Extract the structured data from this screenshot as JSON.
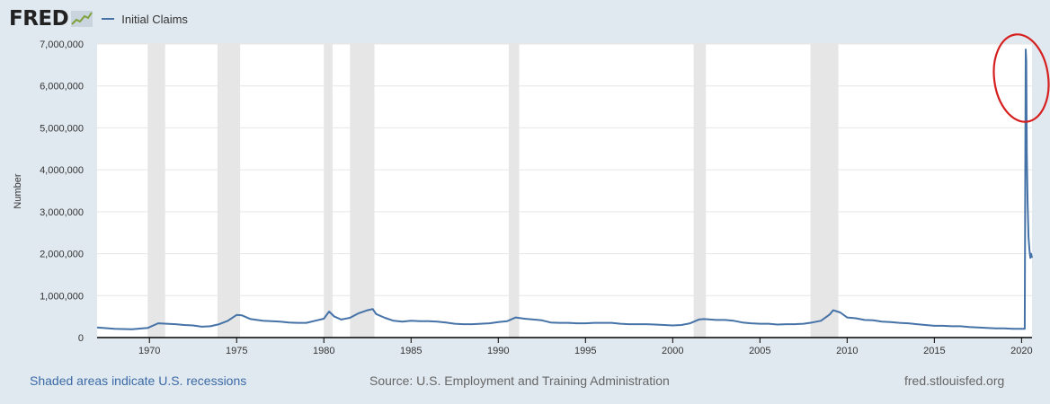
{
  "logo": {
    "text": "FRED"
  },
  "colors": {
    "series": "#4572a7",
    "recession": "#e6e6e6",
    "plot_bg": "#ffffff",
    "page_bg": "#e1e9f0",
    "annotation": "#d62020"
  },
  "chart_data": {
    "type": "line",
    "title": "",
    "xlabel": "",
    "ylabel": "Number",
    "ylim": [
      0,
      7000000
    ],
    "xlim": [
      1967.0,
      2020.6
    ],
    "yticks": [
      {
        "value": 0,
        "label": "0"
      },
      {
        "value": 1000000,
        "label": "1,000,000"
      },
      {
        "value": 2000000,
        "label": "2,000,000"
      },
      {
        "value": 3000000,
        "label": "3,000,000"
      },
      {
        "value": 4000000,
        "label": "4,000,000"
      },
      {
        "value": 5000000,
        "label": "5,000,000"
      },
      {
        "value": 6000000,
        "label": "6,000,000"
      },
      {
        "value": 7000000,
        "label": "7,000,000"
      }
    ],
    "xticks": [
      {
        "value": 1970,
        "label": "1970"
      },
      {
        "value": 1975,
        "label": "1975"
      },
      {
        "value": 1980,
        "label": "1980"
      },
      {
        "value": 1985,
        "label": "1985"
      },
      {
        "value": 1990,
        "label": "1990"
      },
      {
        "value": 1995,
        "label": "1995"
      },
      {
        "value": 2000,
        "label": "2000"
      },
      {
        "value": 2005,
        "label": "2005"
      },
      {
        "value": 2010,
        "label": "2010"
      },
      {
        "value": 2015,
        "label": "2015"
      },
      {
        "value": 2020,
        "label": "2020"
      }
    ],
    "grid": true,
    "legend_position": "top-left",
    "recessions": [
      [
        1969.9,
        1970.9
      ],
      [
        1973.9,
        1975.2
      ],
      [
        1980.0,
        1980.5
      ],
      [
        1981.5,
        1982.9
      ],
      [
        1990.6,
        1991.2
      ],
      [
        2001.2,
        2001.9
      ],
      [
        2007.9,
        2009.5
      ]
    ],
    "series": [
      {
        "name": "Initial Claims",
        "x": [
          1967.0,
          1968.0,
          1969.0,
          1969.9,
          1970.5,
          1971.0,
          1971.5,
          1972.0,
          1972.5,
          1973.0,
          1973.5,
          1974.0,
          1974.5,
          1975.0,
          1975.3,
          1975.8,
          1976.5,
          1977.0,
          1977.5,
          1978.0,
          1978.5,
          1979.0,
          1979.5,
          1980.0,
          1980.3,
          1980.6,
          1981.0,
          1981.5,
          1982.0,
          1982.5,
          1982.8,
          1983.0,
          1983.5,
          1984.0,
          1984.5,
          1985.0,
          1985.5,
          1986.0,
          1986.5,
          1987.0,
          1987.5,
          1988.0,
          1988.5,
          1989.0,
          1989.5,
          1990.0,
          1990.5,
          1991.0,
          1991.5,
          1992.0,
          1992.5,
          1993.0,
          1993.5,
          1994.0,
          1994.5,
          1995.0,
          1995.5,
          1996.0,
          1996.5,
          1997.0,
          1997.5,
          1998.0,
          1998.5,
          1999.0,
          1999.5,
          2000.0,
          2000.5,
          2001.0,
          2001.5,
          2001.8,
          2002.5,
          2003.0,
          2003.5,
          2004.0,
          2004.5,
          2005.0,
          2005.5,
          2006.0,
          2006.5,
          2007.0,
          2007.5,
          2008.0,
          2008.5,
          2009.0,
          2009.2,
          2009.6,
          2010.0,
          2010.5,
          2011.0,
          2011.5,
          2012.0,
          2012.5,
          2013.0,
          2013.5,
          2014.0,
          2014.5,
          2015.0,
          2015.5,
          2016.0,
          2016.5,
          2017.0,
          2017.5,
          2018.0,
          2018.5,
          2019.0,
          2019.5,
          2020.0,
          2020.18,
          2020.21,
          2020.24,
          2020.27,
          2020.3,
          2020.35,
          2020.4,
          2020.45,
          2020.5,
          2020.55,
          2020.6
        ],
        "values": [
          240000,
          210000,
          200000,
          230000,
          340000,
          330000,
          320000,
          300000,
          290000,
          260000,
          270000,
          320000,
          400000,
          540000,
          530000,
          440000,
          400000,
          390000,
          380000,
          360000,
          350000,
          350000,
          400000,
          450000,
          620000,
          500000,
          430000,
          470000,
          580000,
          650000,
          680000,
          560000,
          470000,
          400000,
          380000,
          400000,
          390000,
          390000,
          380000,
          360000,
          330000,
          320000,
          320000,
          330000,
          340000,
          370000,
          390000,
          480000,
          450000,
          430000,
          410000,
          360000,
          350000,
          350000,
          340000,
          340000,
          350000,
          350000,
          350000,
          330000,
          320000,
          320000,
          320000,
          310000,
          300000,
          290000,
          300000,
          340000,
          430000,
          440000,
          420000,
          420000,
          400000,
          360000,
          340000,
          330000,
          330000,
          310000,
          320000,
          320000,
          330000,
          360000,
          400000,
          550000,
          650000,
          600000,
          480000,
          460000,
          420000,
          410000,
          380000,
          370000,
          350000,
          340000,
          320000,
          300000,
          280000,
          280000,
          270000,
          270000,
          250000,
          240000,
          230000,
          220000,
          220000,
          210000,
          210000,
          210000,
          3300000,
          6870000,
          6600000,
          4400000,
          3200000,
          2400000,
          2100000,
          1900000,
          2000000,
          1900000
        ]
      }
    ]
  },
  "footer": {
    "recession_note": "Shaded areas indicate U.S. recessions",
    "source": "Source: U.S. Employment and Training Administration",
    "site": "fred.stlouisfed.org"
  }
}
